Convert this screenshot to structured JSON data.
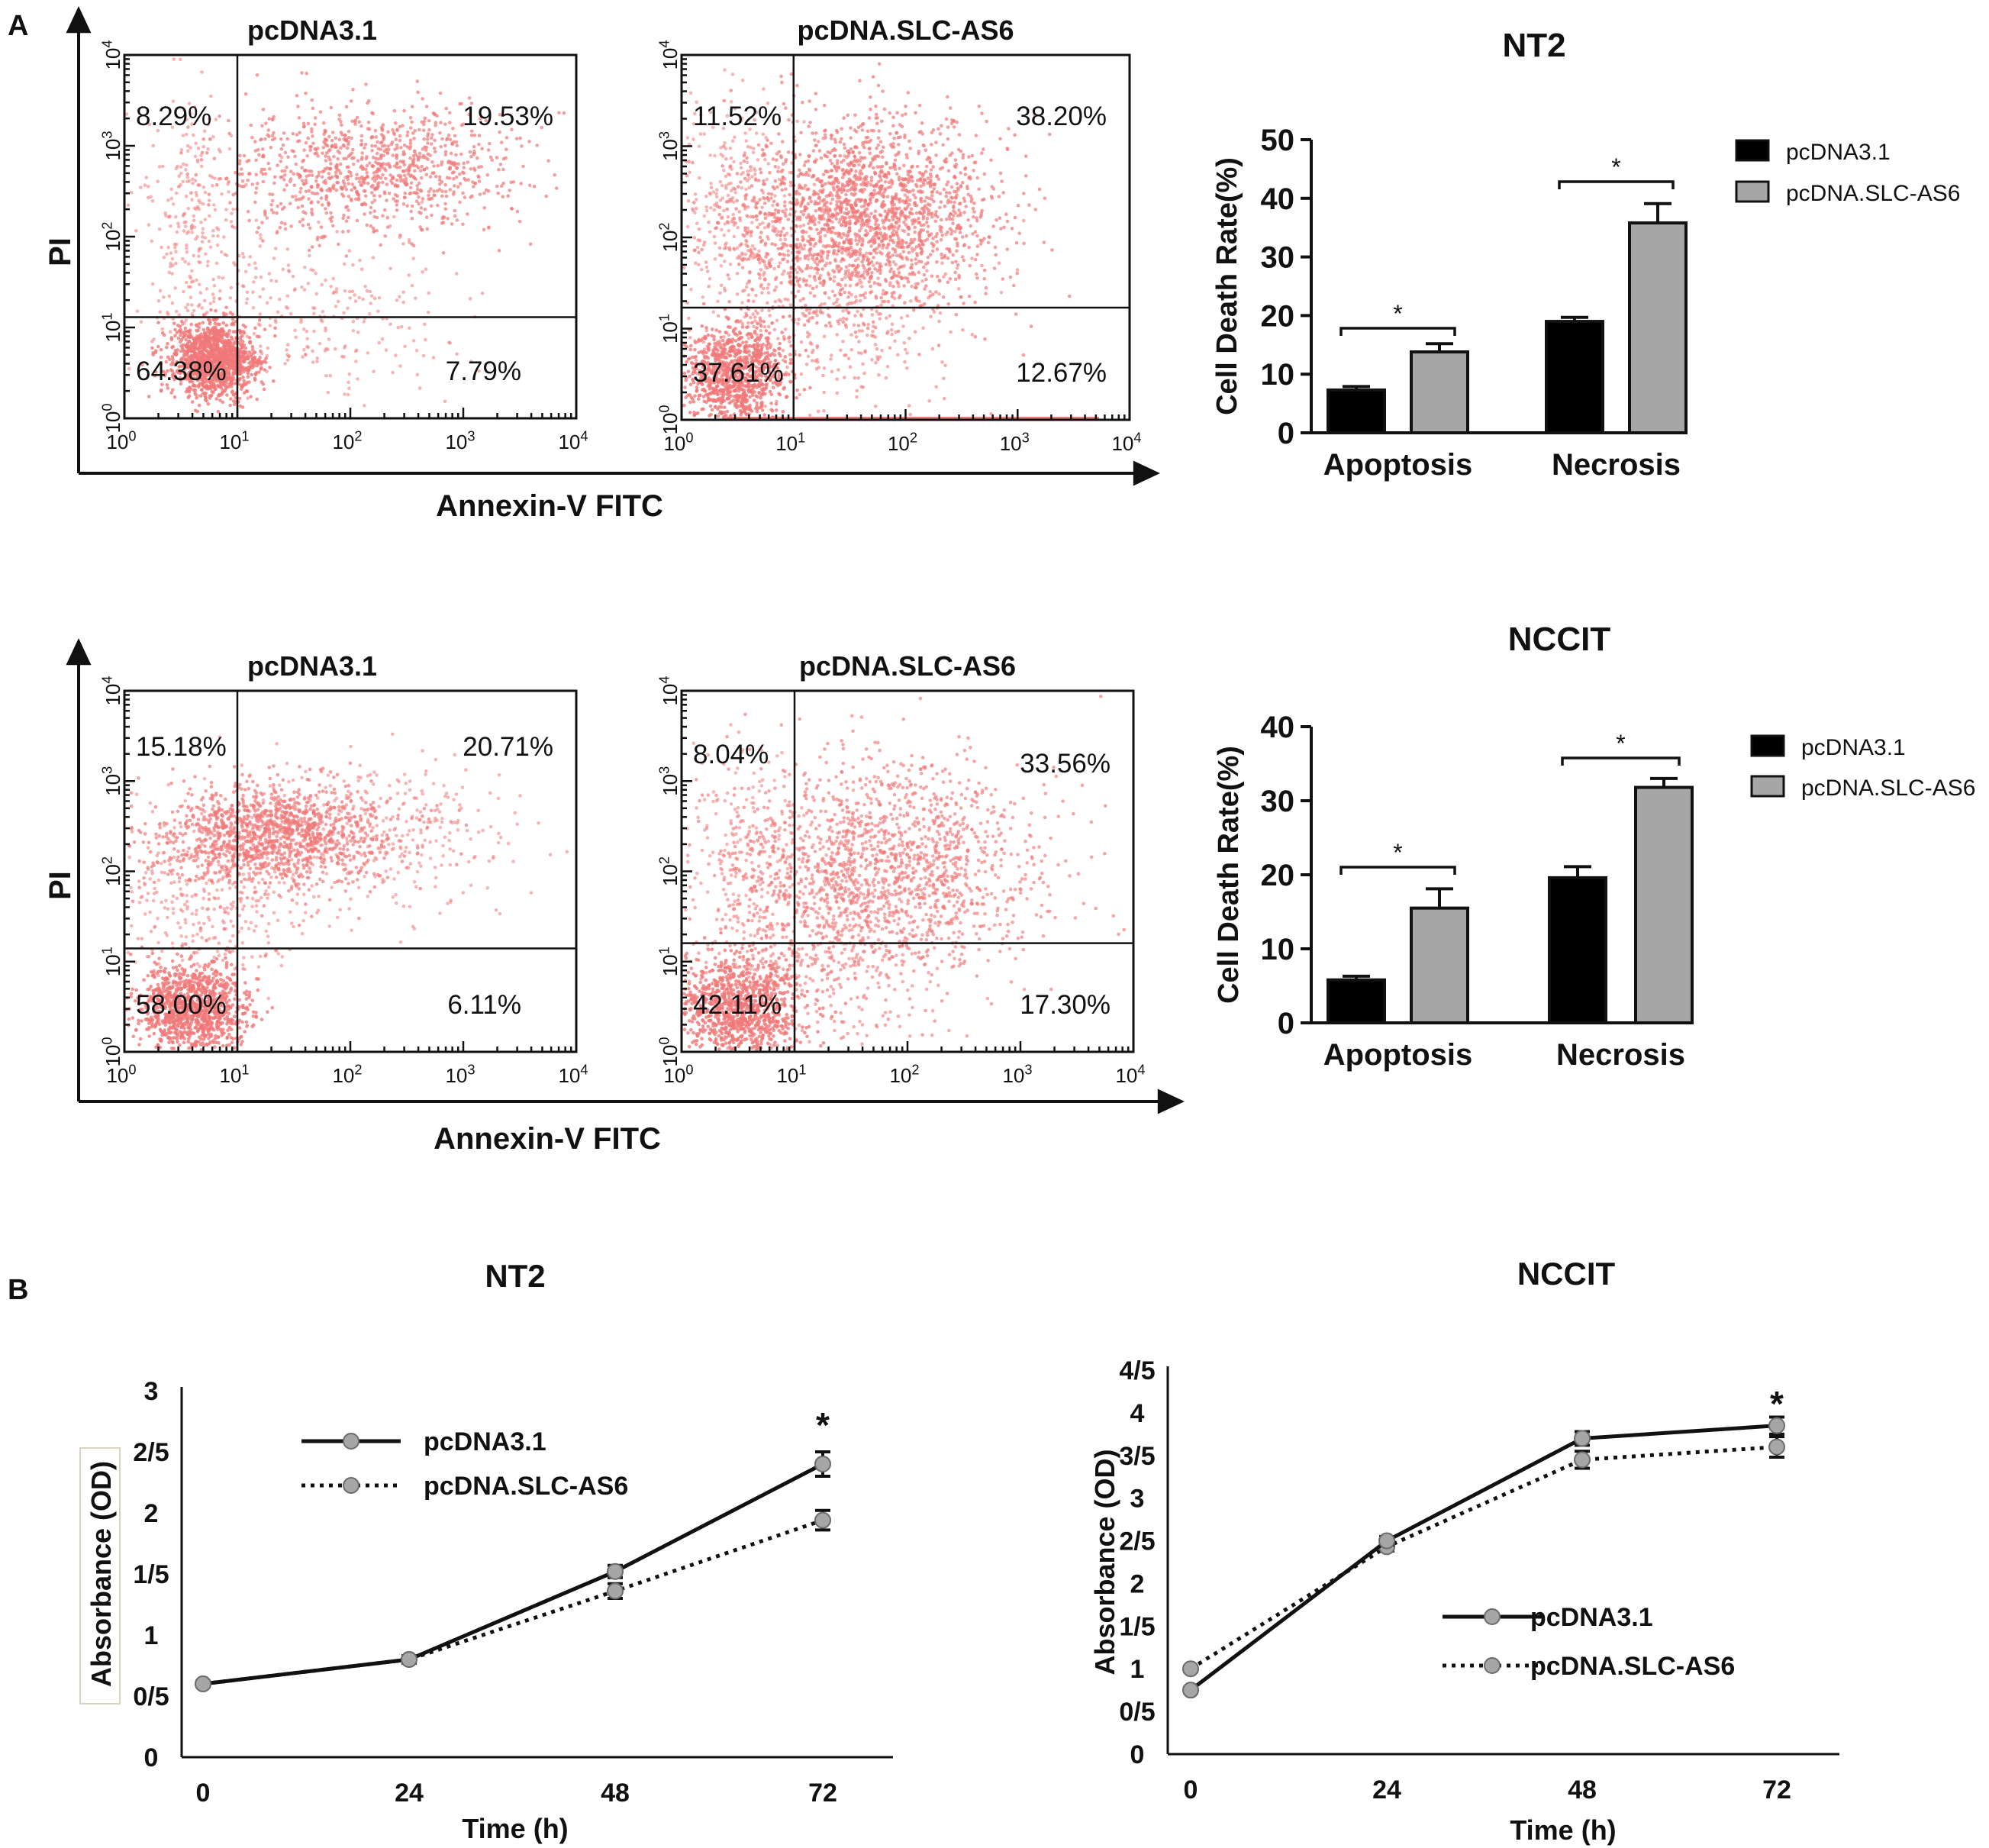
{
  "figure": {
    "panel_labels": {
      "a": "A",
      "b": "B"
    }
  },
  "chart_data": [
    {
      "type": "scatter",
      "name": "NT2 flow cytometry pcDNA3.1",
      "title": "pcDNA3.1",
      "xlabel": "Annexin-V FITC",
      "ylabel": "PI",
      "xlim": [
        1,
        10000
      ],
      "ylim": [
        1,
        10000
      ],
      "x_ticks": [
        "10",
        "10",
        "10",
        "10",
        "10"
      ],
      "x_tick_exps": [
        "0",
        "1",
        "2",
        "3",
        "4"
      ],
      "y_ticks": [
        "10",
        "10",
        "10",
        "10",
        "10"
      ],
      "y_tick_exps": [
        "0",
        "1",
        "2",
        "3",
        "4"
      ],
      "gate_x": 10,
      "gate_y": 13,
      "quadrants": {
        "ul": "8.29%",
        "ur": "19.53%",
        "ll": "64.38%",
        "lr": "7.79%"
      }
    },
    {
      "type": "scatter",
      "name": "NT2 flow cytometry pcDNA.SLC-AS6",
      "title": "pcDNA.SLC-AS6",
      "xlabel": "Annexin-V FITC",
      "ylabel": "PI",
      "xlim": [
        1,
        10000
      ],
      "ylim": [
        1,
        10000
      ],
      "x_ticks": [
        "10",
        "10",
        "10",
        "10",
        "10"
      ],
      "x_tick_exps": [
        "0",
        "1",
        "2",
        "3",
        "4"
      ],
      "y_ticks": [
        "10",
        "10",
        "10",
        "10",
        "10"
      ],
      "y_tick_exps": [
        "0",
        "1",
        "2",
        "3",
        "4"
      ],
      "gate_x": 10,
      "gate_y": 17,
      "quadrants": {
        "ul": "11.52%",
        "ur": "38.20%",
        "ll": "37.61%",
        "lr": "12.67%"
      }
    },
    {
      "type": "bar",
      "name": "NT2 cell death",
      "title": "NT2",
      "ylabel": "Cell Death Rate(%)",
      "categories": [
        "Apoptosis",
        "Necrosis"
      ],
      "ylim": [
        0,
        50
      ],
      "yticks": [
        "0",
        "10",
        "20",
        "30",
        "40",
        "50"
      ],
      "series": [
        {
          "name": "pcDNA3.1",
          "values": [
            7.3,
            19.0
          ],
          "errors": [
            0.6,
            0.7
          ],
          "color": "#000000"
        },
        {
          "name": "pcDNA.SLC-AS6",
          "values": [
            13.8,
            35.8
          ],
          "errors": [
            1.4,
            3.3
          ],
          "color": "#a6a6a6"
        }
      ],
      "significance": [
        "*",
        "*"
      ]
    },
    {
      "type": "scatter",
      "name": "NCCIT flow cytometry pcDNA3.1",
      "title": "pcDNA3.1",
      "xlabel": "Annexin-V FITC",
      "ylabel": "PI",
      "xlim": [
        1,
        10000
      ],
      "ylim": [
        1,
        10000
      ],
      "x_ticks": [
        "10",
        "10",
        "10",
        "10",
        "10"
      ],
      "x_tick_exps": [
        "0",
        "1",
        "2",
        "3",
        "4"
      ],
      "y_ticks": [
        "10",
        "10",
        "10",
        "10",
        "10"
      ],
      "y_tick_exps": [
        "0",
        "1",
        "2",
        "3",
        "4"
      ],
      "gate_x": 10,
      "gate_y": 14,
      "quadrants": {
        "ul": "15.18%",
        "ur": "20.71%",
        "ll": "58.00%",
        "lr": "6.11%"
      }
    },
    {
      "type": "scatter",
      "name": "NCCIT flow cytometry pcDNA.SLC-AS6",
      "title": "pcDNA.SLC-AS6",
      "xlabel": "Annexin-V FITC",
      "ylabel": "PI",
      "xlim": [
        1,
        10000
      ],
      "ylim": [
        1,
        10000
      ],
      "x_ticks": [
        "10",
        "10",
        "10",
        "10",
        "10"
      ],
      "x_tick_exps": [
        "0",
        "1",
        "2",
        "3",
        "4"
      ],
      "y_ticks": [
        "10",
        "10",
        "10",
        "10",
        "10"
      ],
      "y_tick_exps": [
        "0",
        "1",
        "2",
        "3",
        "4"
      ],
      "gate_x": 10,
      "gate_y": 16,
      "quadrants": {
        "ul": "8.04%",
        "ur": "33.56%",
        "ll": "42.11%",
        "lr": "17.30%"
      }
    },
    {
      "type": "bar",
      "name": "NCCIT cell death",
      "title": "NCCIT",
      "ylabel": "Cell Death Rate(%)",
      "categories": [
        "Apoptosis",
        "Necrosis"
      ],
      "ylim": [
        0,
        40
      ],
      "yticks": [
        "0",
        "10",
        "20",
        "30",
        "40"
      ],
      "series": [
        {
          "name": "pcDNA3.1",
          "values": [
            5.8,
            19.6
          ],
          "errors": [
            0.5,
            1.5
          ],
          "color": "#000000"
        },
        {
          "name": "pcDNA.SLC-AS6",
          "values": [
            15.5,
            31.8
          ],
          "errors": [
            2.6,
            1.2
          ],
          "color": "#a6a6a6"
        }
      ],
      "significance": [
        "*",
        "*"
      ]
    },
    {
      "type": "line",
      "name": "NT2 proliferation",
      "title": "NT2",
      "xlabel": "Time (h)",
      "ylabel": "Absorbance (OD)",
      "x": [
        0,
        24,
        48,
        72
      ],
      "xticks": [
        "0",
        "24",
        "48",
        "72"
      ],
      "ylim": [
        0,
        3
      ],
      "yticks": [
        "0",
        "0/5",
        "1",
        "1/5",
        "2",
        "2/5",
        "3"
      ],
      "series": [
        {
          "name": "pcDNA3.1",
          "values": [
            0.6,
            0.8,
            1.52,
            2.4
          ],
          "errors": [
            0.02,
            0.03,
            0.05,
            0.1
          ],
          "style": "solid"
        },
        {
          "name": "pcDNA.SLC-AS6",
          "values": [
            0.6,
            0.8,
            1.36,
            1.94
          ],
          "errors": [
            0.02,
            0.03,
            0.06,
            0.08
          ],
          "style": "dotted"
        }
      ],
      "significance": [
        {
          "x": 72,
          "label": "*"
        }
      ]
    },
    {
      "type": "line",
      "name": "NCCIT proliferation",
      "title": "NCCIT",
      "xlabel": "Time (h)",
      "ylabel": "Absorbance (OD)",
      "x": [
        0,
        24,
        48,
        72
      ],
      "xticks": [
        "0",
        "24",
        "48",
        "72"
      ],
      "ylim": [
        0,
        4.5
      ],
      "yticks": [
        "0",
        "0/5",
        "1",
        "1/5",
        "2",
        "2/5",
        "3",
        "3/5",
        "4",
        "4/5"
      ],
      "series": [
        {
          "name": "pcDNA3.1",
          "values": [
            0.75,
            2.5,
            3.7,
            3.85
          ],
          "errors": [
            0.03,
            0.05,
            0.08,
            0.1
          ],
          "style": "solid"
        },
        {
          "name": "pcDNA.SLC-AS6",
          "values": [
            1.0,
            2.43,
            3.45,
            3.6
          ],
          "errors": [
            0.03,
            0.05,
            0.1,
            0.12
          ],
          "style": "dotted"
        }
      ],
      "significance": [
        {
          "x": 72,
          "label": "*"
        }
      ]
    }
  ]
}
